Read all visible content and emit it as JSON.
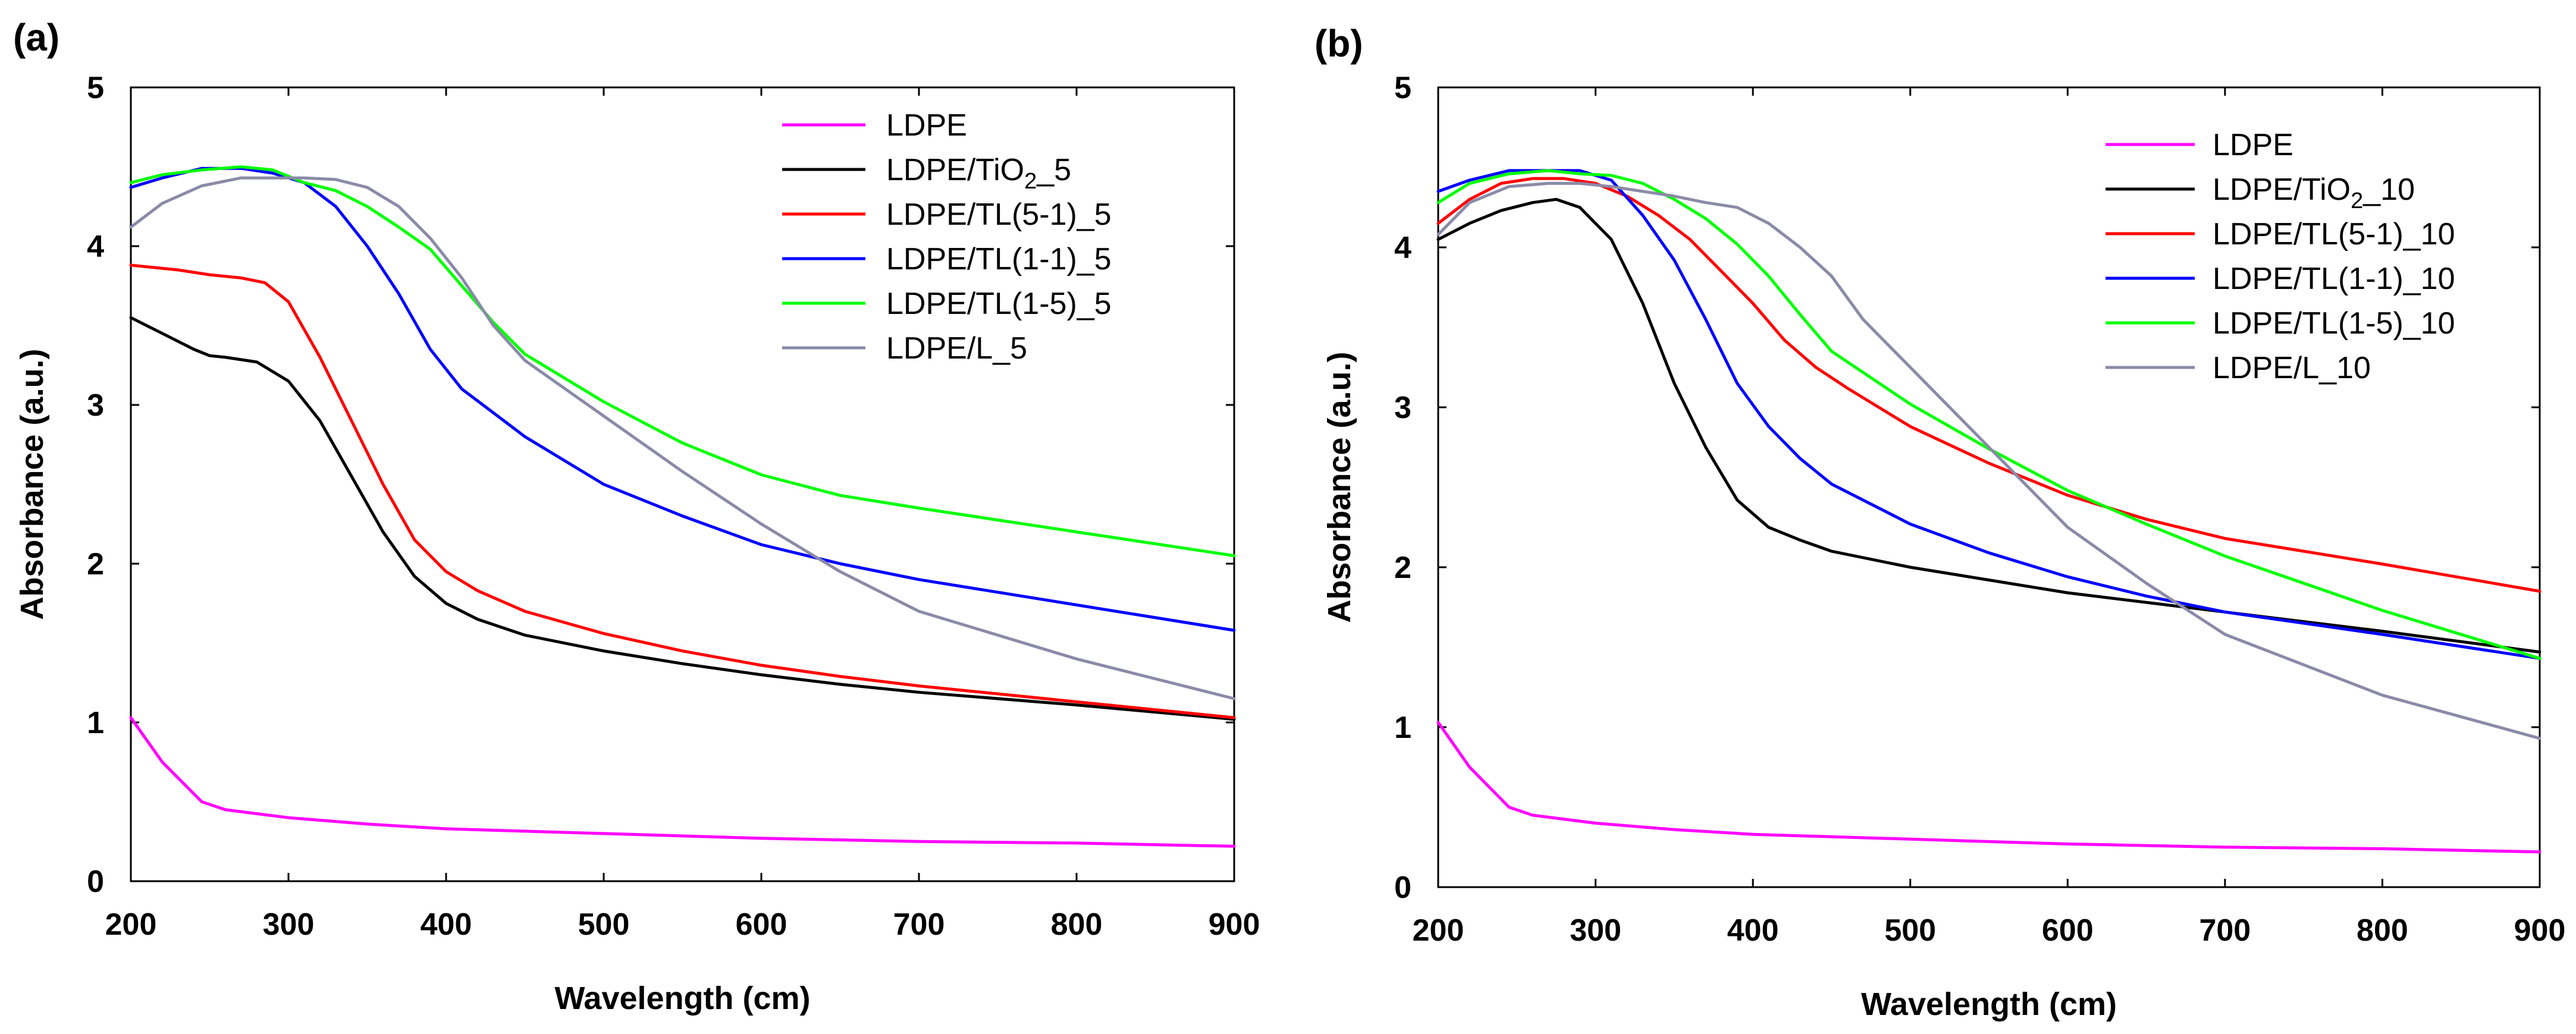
{
  "chart_data": [
    {
      "type": "line",
      "panel_label": "(a)",
      "xlabel": "Wavelength (cm)",
      "ylabel": "Absorbance (a.u.)",
      "xlim": [
        200,
        900
      ],
      "ylim": [
        0,
        5
      ],
      "xticks": [
        "200",
        "300",
        "400",
        "500",
        "600",
        "700",
        "800",
        "900"
      ],
      "yticks": [
        "0",
        "1",
        "2",
        "3",
        "4",
        "5"
      ],
      "legend_position": "top-right",
      "series": [
        {
          "name": "LDPE",
          "legend": {
            "main": "LDPE"
          },
          "color": "#ff00ff",
          "x": [
            200,
            220,
            245,
            260,
            300,
            350,
            400,
            500,
            600,
            700,
            800,
            900
          ],
          "y": [
            1.03,
            0.75,
            0.5,
            0.45,
            0.4,
            0.36,
            0.33,
            0.3,
            0.27,
            0.25,
            0.24,
            0.22
          ]
        },
        {
          "name": "LDPE/TiO2_5",
          "legend": {
            "main": "LDPE/TiO",
            "sub": "2",
            "tail": "_5"
          },
          "color": "#000000",
          "x": [
            200,
            220,
            240,
            250,
            260,
            280,
            300,
            320,
            340,
            360,
            380,
            400,
            420,
            450,
            500,
            550,
            600,
            650,
            700,
            800,
            900
          ],
          "y": [
            3.55,
            3.45,
            3.35,
            3.31,
            3.3,
            3.27,
            3.15,
            2.9,
            2.55,
            2.2,
            1.92,
            1.75,
            1.65,
            1.55,
            1.45,
            1.37,
            1.3,
            1.24,
            1.19,
            1.11,
            1.02
          ]
        },
        {
          "name": "LDPE/TL(5-1)_5",
          "legend": {
            "main": "LDPE/TL(5-1)_5"
          },
          "color": "#ff0000",
          "x": [
            200,
            230,
            250,
            270,
            285,
            300,
            320,
            340,
            360,
            380,
            400,
            420,
            450,
            500,
            550,
            600,
            650,
            700,
            800,
            900
          ],
          "y": [
            3.88,
            3.85,
            3.82,
            3.8,
            3.77,
            3.65,
            3.3,
            2.9,
            2.5,
            2.15,
            1.95,
            1.83,
            1.7,
            1.56,
            1.45,
            1.36,
            1.29,
            1.23,
            1.13,
            1.03
          ]
        },
        {
          "name": "LDPE/TL(1-1)_5",
          "legend": {
            "main": "LDPE/TL(1-1)_5"
          },
          "color": "#0000ff",
          "x": [
            200,
            220,
            245,
            270,
            290,
            310,
            330,
            350,
            370,
            390,
            410,
            430,
            450,
            500,
            550,
            600,
            650,
            700,
            800,
            900
          ],
          "y": [
            4.37,
            4.43,
            4.49,
            4.49,
            4.46,
            4.4,
            4.25,
            4.0,
            3.7,
            3.35,
            3.1,
            2.95,
            2.8,
            2.5,
            2.3,
            2.12,
            2.0,
            1.9,
            1.74,
            1.58
          ]
        },
        {
          "name": "LDPE/TL(1-5)_5",
          "legend": {
            "main": "LDPE/TL(1-5)_5"
          },
          "color": "#00ff00",
          "x": [
            200,
            220,
            245,
            270,
            290,
            310,
            330,
            350,
            370,
            390,
            410,
            430,
            450,
            500,
            550,
            600,
            650,
            700,
            800,
            900
          ],
          "y": [
            4.4,
            4.45,
            4.48,
            4.5,
            4.48,
            4.4,
            4.35,
            4.25,
            4.12,
            3.98,
            3.75,
            3.52,
            3.32,
            3.02,
            2.76,
            2.56,
            2.43,
            2.35,
            2.2,
            2.05
          ]
        },
        {
          "name": "LDPE/L_5",
          "legend": {
            "main": "LDPE/L_5"
          },
          "color": "#8a8aa8",
          "x": [
            200,
            220,
            245,
            270,
            290,
            310,
            330,
            350,
            370,
            390,
            410,
            430,
            450,
            500,
            550,
            600,
            650,
            700,
            800,
            900
          ],
          "y": [
            4.12,
            4.27,
            4.38,
            4.43,
            4.43,
            4.43,
            4.42,
            4.37,
            4.25,
            4.05,
            3.8,
            3.5,
            3.28,
            2.93,
            2.58,
            2.25,
            1.95,
            1.7,
            1.4,
            1.15
          ]
        }
      ]
    },
    {
      "type": "line",
      "panel_label": "(b)",
      "xlabel": "Wavelength (cm)",
      "ylabel": "Absorbance (a.u.)",
      "xlim": [
        200,
        900
      ],
      "ylim": [
        0,
        5
      ],
      "xticks": [
        "200",
        "300",
        "400",
        "500",
        "600",
        "700",
        "800",
        "900"
      ],
      "yticks": [
        "0",
        "1",
        "2",
        "3",
        "4",
        "5"
      ],
      "legend_position": "top-right",
      "series": [
        {
          "name": "LDPE",
          "legend": {
            "main": "LDPE"
          },
          "color": "#ff00ff",
          "x": [
            200,
            220,
            245,
            260,
            300,
            350,
            400,
            500,
            600,
            700,
            800,
            900
          ],
          "y": [
            1.03,
            0.75,
            0.5,
            0.45,
            0.4,
            0.36,
            0.33,
            0.3,
            0.27,
            0.25,
            0.24,
            0.22
          ]
        },
        {
          "name": "LDPE/TiO2_10",
          "legend": {
            "main": "LDPE/TiO",
            "sub": "2",
            "tail": "_10"
          },
          "color": "#000000",
          "x": [
            200,
            220,
            240,
            260,
            275,
            290,
            310,
            330,
            350,
            370,
            390,
            410,
            430,
            450,
            500,
            550,
            600,
            700,
            800,
            900
          ],
          "y": [
            4.05,
            4.15,
            4.23,
            4.28,
            4.3,
            4.25,
            4.05,
            3.65,
            3.15,
            2.75,
            2.42,
            2.25,
            2.17,
            2.1,
            2.0,
            1.92,
            1.84,
            1.72,
            1.6,
            1.47
          ]
        },
        {
          "name": "LDPE/TL(5-1)_10",
          "legend": {
            "main": "LDPE/TL(5-1)_10"
          },
          "color": "#ff0000",
          "x": [
            200,
            220,
            240,
            260,
            280,
            300,
            320,
            340,
            360,
            380,
            400,
            420,
            440,
            460,
            500,
            550,
            600,
            650,
            700,
            800,
            900
          ],
          "y": [
            4.15,
            4.3,
            4.4,
            4.43,
            4.43,
            4.4,
            4.32,
            4.2,
            4.05,
            3.85,
            3.65,
            3.42,
            3.25,
            3.12,
            2.88,
            2.65,
            2.45,
            2.3,
            2.18,
            2.02,
            1.85
          ]
        },
        {
          "name": "LDPE/TL(1-1)_10",
          "legend": {
            "main": "LDPE/TL(1-1)_10"
          },
          "color": "#0000ff",
          "x": [
            200,
            220,
            245,
            270,
            290,
            310,
            330,
            350,
            370,
            390,
            410,
            430,
            450,
            500,
            550,
            600,
            650,
            700,
            800,
            900
          ],
          "y": [
            4.35,
            4.42,
            4.48,
            4.48,
            4.48,
            4.42,
            4.2,
            3.92,
            3.55,
            3.15,
            2.88,
            2.68,
            2.52,
            2.27,
            2.09,
            1.94,
            1.82,
            1.72,
            1.58,
            1.43
          ]
        },
        {
          "name": "LDPE/TL(1-5)_10",
          "legend": {
            "main": "LDPE/TL(1-5)_10"
          },
          "color": "#00ff00",
          "x": [
            200,
            220,
            245,
            270,
            290,
            310,
            330,
            350,
            370,
            390,
            410,
            430,
            450,
            500,
            550,
            600,
            650,
            700,
            800,
            900
          ],
          "y": [
            4.28,
            4.4,
            4.46,
            4.48,
            4.46,
            4.45,
            4.4,
            4.3,
            4.18,
            4.02,
            3.82,
            3.58,
            3.35,
            3.02,
            2.74,
            2.48,
            2.27,
            2.07,
            1.73,
            1.43
          ]
        },
        {
          "name": "LDPE/L_10",
          "legend": {
            "main": "LDPE/L_10"
          },
          "color": "#8a8aa8",
          "x": [
            200,
            220,
            245,
            270,
            290,
            310,
            330,
            350,
            370,
            390,
            410,
            430,
            450,
            470,
            500,
            550,
            600,
            650,
            700,
            800,
            900
          ],
          "y": [
            4.08,
            4.28,
            4.38,
            4.4,
            4.4,
            4.38,
            4.35,
            4.32,
            4.28,
            4.25,
            4.15,
            4.0,
            3.82,
            3.55,
            3.25,
            2.75,
            2.25,
            1.9,
            1.58,
            1.2,
            0.93
          ]
        }
      ]
    }
  ]
}
